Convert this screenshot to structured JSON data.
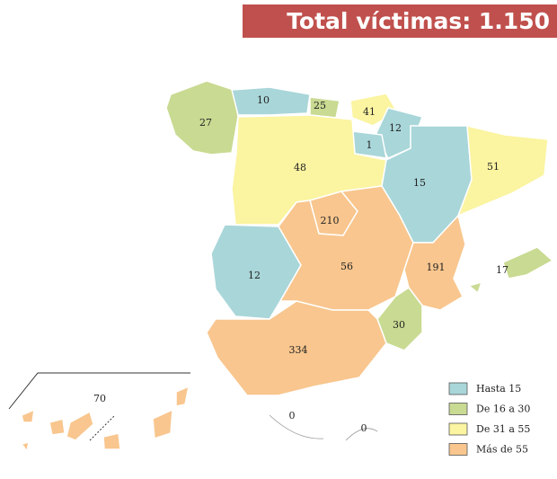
{
  "title": "Total víctimas: 1.150",
  "regions": [
    {
      "value": 27,
      "color": "#c9da92"
    },
    {
      "value": 10,
      "color": "#a9d6d9"
    },
    {
      "value": 25,
      "color": "#c9da92"
    },
    {
      "value": 41,
      "color": "#fbf4a1"
    },
    {
      "value": 12,
      "color": "#a9d6d9"
    },
    {
      "value": 1,
      "color": "#a9d6d9"
    },
    {
      "value": 48,
      "color": "#fbf4a1"
    },
    {
      "value": 15,
      "color": "#a9d6d9"
    },
    {
      "value": 51,
      "color": "#fbf4a1"
    },
    {
      "value": 210,
      "color": "#f8c68e"
    },
    {
      "value": 12,
      "color": "#a9d6d9"
    },
    {
      "value": 56,
      "color": "#f8c68e"
    },
    {
      "value": 191,
      "color": "#f8c68e"
    },
    {
      "value": 30,
      "color": "#c9da92"
    },
    {
      "value": 334,
      "color": "#f8c68e"
    },
    {
      "value": 17,
      "color": "#c9da92"
    },
    {
      "value": 70,
      "color": "#f8c68e"
    },
    {
      "value": 0,
      "color": "#ffffff"
    },
    {
      "value": 0,
      "color": "#ffffff"
    }
  ],
  "legend": [
    {
      "label": "Hasta 15",
      "color": "#a9d6d9"
    },
    {
      "label": "De 16 a 30",
      "color": "#c9da92"
    },
    {
      "label": "De 31 a 55",
      "color": "#fbf4a1"
    },
    {
      "label": "Más de 55",
      "color": "#f8c68e"
    }
  ]
}
